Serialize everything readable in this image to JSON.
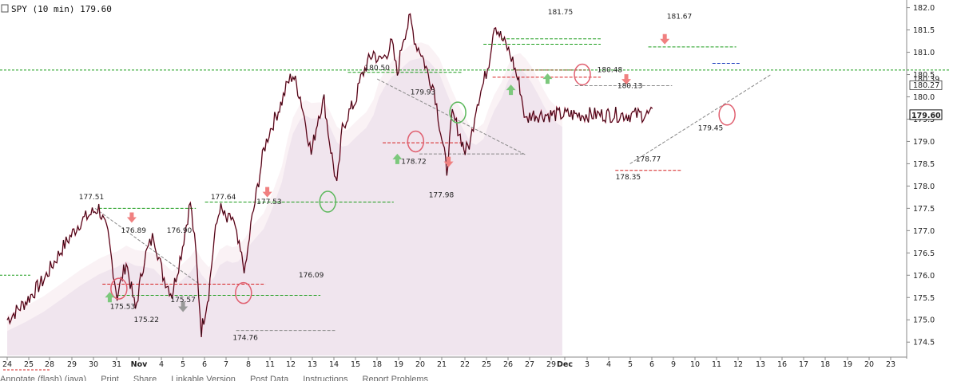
{
  "title": "SPY (10 min) 179.60",
  "footer": {
    "items": [
      "Annotate (flash) (java)",
      "Print",
      "Share",
      "Linkable Version",
      "Post Data",
      "Instructions",
      "Report Problems"
    ]
  },
  "chart_data": {
    "type": "line",
    "title": "SPY (10 min) 179.60",
    "xlabel": "",
    "ylabel": "",
    "ylim": [
      174.2,
      182.1
    ],
    "grid": false,
    "last_price": "179.60",
    "y_ticks": [
      "174.5",
      "175.0",
      "175.5",
      "176.0",
      "176.5",
      "177.0",
      "177.5",
      "178.0",
      "178.5",
      "179.0",
      "179.5",
      "180.0",
      "180.5",
      "181.0",
      "181.5",
      "182.0"
    ],
    "x_ticks": [
      "24",
      "25",
      "28",
      "29",
      "30",
      "31",
      "Nov",
      "4",
      "5",
      "6",
      "7",
      "8",
      "11",
      "12",
      "13",
      "14",
      "15",
      "18",
      "19",
      "20",
      "21",
      "22",
      "25",
      "26",
      "27",
      "29",
      "Dec",
      "3",
      "4",
      "5",
      "6",
      "9",
      "10",
      "11",
      "12",
      "13",
      "16",
      "17",
      "18",
      "19",
      "20",
      "23"
    ],
    "bold_x_ticks": [
      "Nov",
      "Dec"
    ],
    "right_labels": [
      "180.39",
      "180.27"
    ],
    "series": [
      {
        "x": [
          0,
          1,
          2,
          3,
          4,
          5,
          5.5,
          6,
          6.5,
          7,
          7.5,
          8,
          8.5,
          9,
          9.5,
          10,
          10.3,
          10.6,
          11,
          11.3,
          11.6,
          12,
          12.3,
          12.6,
          13,
          13.3,
          13.6,
          14,
          14.3,
          14.6,
          15,
          15.3,
          15.6,
          16,
          16.3,
          16.6,
          17,
          17.3,
          17.6,
          18,
          18.3,
          18.6,
          19,
          19.3,
          19.6,
          20,
          20.3,
          20.6,
          21,
          21.3,
          21.6,
          22,
          22.3,
          22.6,
          23,
          23.3,
          23.6,
          24,
          24.3,
          24.6,
          25,
          25.3,
          25.6,
          26,
          26.3,
          26.6,
          27,
          27.3,
          27.6,
          28,
          28.3,
          28.6,
          29,
          29.3,
          29.6,
          30,
          30.3,
          30.6,
          31,
          31.3,
          31.6,
          32,
          32.3,
          32.6,
          33,
          33.3,
          33.6,
          34,
          34.3,
          34.6,
          35,
          35.3
        ],
        "values": [
          175.0,
          175.4,
          175.9,
          176.6,
          177.2,
          177.51,
          176.9,
          175.53,
          176.3,
          175.22,
          176.4,
          176.9,
          176.0,
          175.57,
          176.5,
          177.64,
          176.5,
          174.76,
          175.6,
          176.8,
          177.53,
          177.2,
          177.3,
          176.7,
          176.09,
          177.1,
          177.8,
          178.8,
          179.2,
          179.5,
          179.9,
          180.3,
          180.5,
          180.0,
          179.4,
          178.72,
          179.6,
          179.93,
          179.0,
          177.98,
          179.3,
          179.6,
          179.9,
          180.4,
          180.7,
          181.0,
          180.8,
          180.9,
          181.2,
          180.5,
          181.3,
          181.75,
          181.2,
          181.0,
          180.48,
          180.2,
          179.4,
          178.35,
          179.6,
          179.3,
          178.77,
          179.0,
          179.8,
          180.3,
          180.8,
          181.67,
          181.3,
          181.1,
          180.8,
          180.2,
          179.45,
          179.6,
          179.6,
          179.6,
          179.6,
          179.6,
          179.6,
          179.6,
          179.6,
          179.6,
          179.6,
          179.6,
          179.6,
          179.6,
          179.6,
          179.6,
          179.6,
          179.6,
          179.6,
          179.6,
          179.6,
          179.6
        ]
      }
    ],
    "annotations": [
      "177.51",
      "176.89",
      "175.53",
      "175.22",
      "176.90",
      "175.57",
      "177.64",
      "174.76",
      "177.53",
      "176.09",
      "180.50",
      "179.93",
      "178.72",
      "177.98",
      "181.75",
      "180.48",
      "180.13",
      "178.35",
      "178.77",
      "181.67",
      "179.45"
    ]
  }
}
